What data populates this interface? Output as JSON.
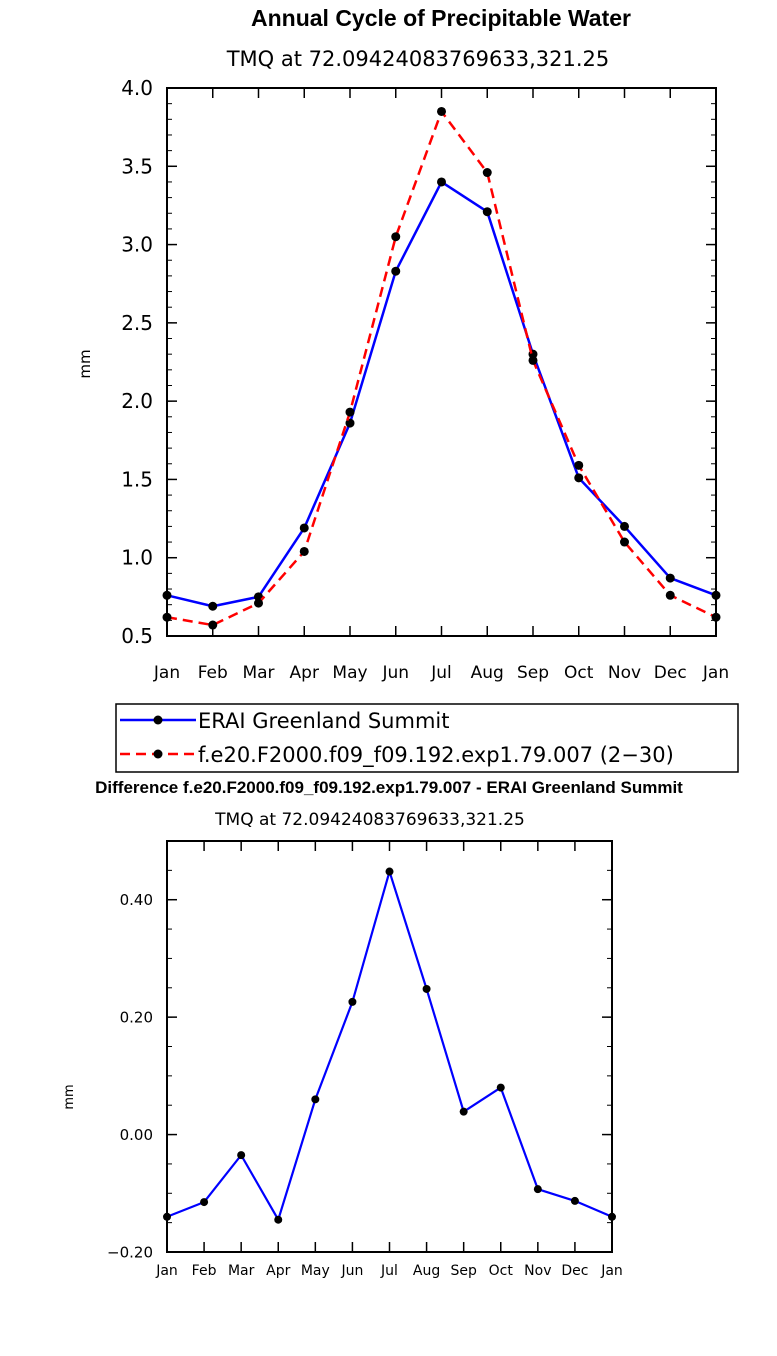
{
  "chart_data": [
    {
      "type": "line",
      "title": "Annual Cycle of Precipitable Water",
      "subtitle": "TMQ at 72.09424083769633,321.25",
      "xlabel": "",
      "ylabel": "mm",
      "ylim": [
        0.5,
        4.0
      ],
      "yticks": [
        "0.5",
        "1.0",
        "1.5",
        "2.0",
        "2.5",
        "3.0",
        "3.5",
        "4.0"
      ],
      "categories": [
        "Jan",
        "Feb",
        "Mar",
        "Apr",
        "May",
        "Jun",
        "Jul",
        "Aug",
        "Sep",
        "Oct",
        "Nov",
        "Dec",
        "Jan"
      ],
      "series": [
        {
          "name": "ERAI Greenland Summit",
          "color": "#0000ff",
          "dash": "solid",
          "values": [
            0.76,
            0.69,
            0.75,
            1.19,
            1.86,
            2.83,
            3.4,
            3.21,
            2.3,
            1.51,
            1.2,
            0.87,
            0.76
          ]
        },
        {
          "name": "f.e20.F2000.f09_f09.192.exp1.79.007 (2−30)",
          "color": "#ff0000",
          "dash": "dashed",
          "values": [
            0.62,
            0.57,
            0.71,
            1.04,
            1.93,
            3.05,
            3.85,
            3.46,
            2.26,
            1.59,
            1.1,
            0.76,
            0.62
          ]
        }
      ],
      "legend": "below"
    },
    {
      "type": "line",
      "title": "Difference f.e20.F2000.f09_f09.192.exp1.79.007 - ERAI Greenland Summit",
      "subtitle": "TMQ at 72.09424083769633,321.25",
      "xlabel": "",
      "ylabel": "mm",
      "ylim": [
        -0.2,
        0.5
      ],
      "yticks": [
        "−0.20",
        "0.00",
        "0.20",
        "0.40"
      ],
      "ytick_values": [
        -0.2,
        0.0,
        0.2,
        0.4
      ],
      "categories": [
        "Jan",
        "Feb",
        "Mar",
        "Apr",
        "May",
        "Jun",
        "Jul",
        "Aug",
        "Sep",
        "Oct",
        "Nov",
        "Dec",
        "Jan"
      ],
      "series": [
        {
          "name": "Difference",
          "color": "#0000ff",
          "dash": "solid",
          "values": [
            -0.14,
            -0.115,
            -0.035,
            -0.145,
            0.06,
            0.226,
            0.448,
            0.248,
            0.039,
            0.08,
            -0.093,
            -0.113,
            -0.14
          ]
        }
      ]
    }
  ]
}
